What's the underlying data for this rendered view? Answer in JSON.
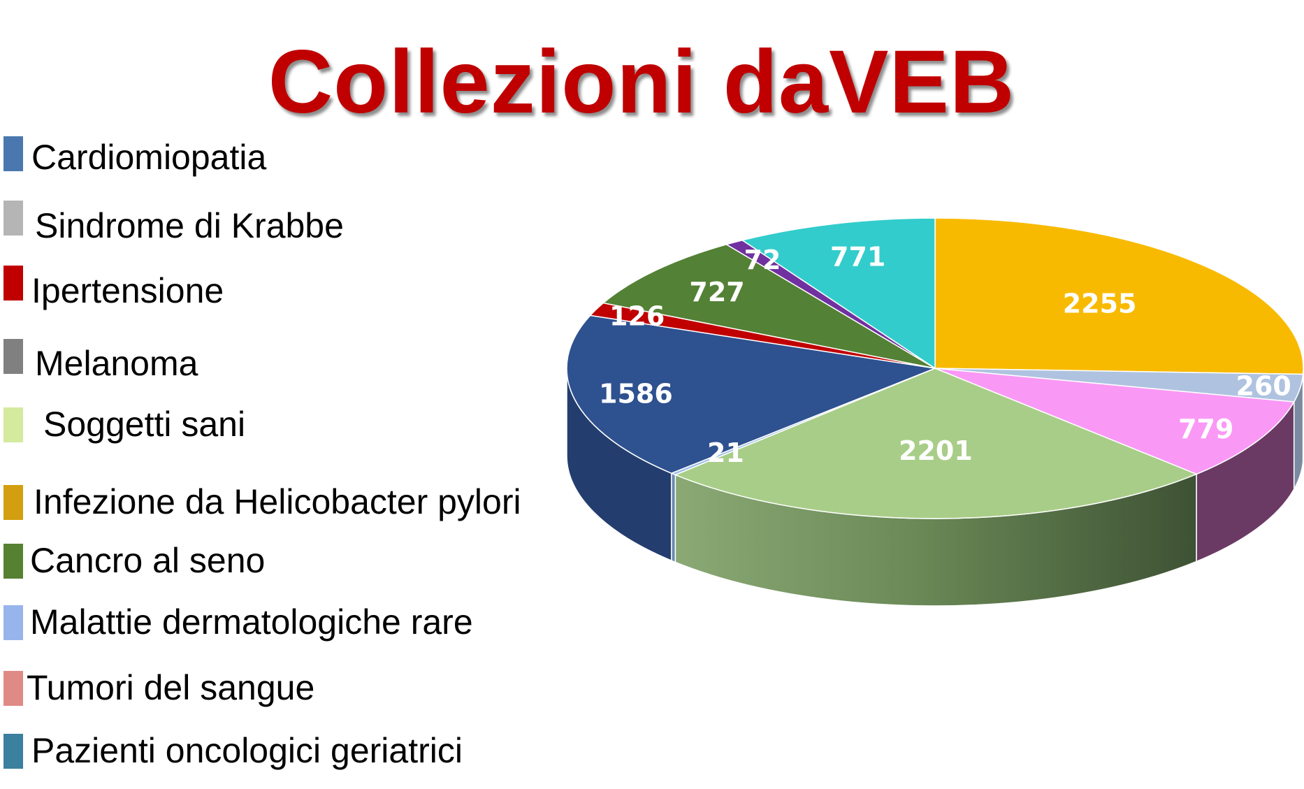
{
  "title": "Collezioni daVEB",
  "title_color": "#c00000",
  "legend": [
    {
      "label": "Cardiomiopatia",
      "color": "#4a78ae"
    },
    {
      "label": "Sindrome di Krabbe",
      "color": "#b5b5b5"
    },
    {
      "label": "Ipertensione",
      "color": "#c00000"
    },
    {
      "label": "Melanoma",
      "color": "#808080"
    },
    {
      "label": "Soggetti sani",
      "color": "#d4ea9e"
    },
    {
      "label": "Infezione da Helicobacter pylori",
      "color": "#d39e10"
    },
    {
      "label": "Cancro al seno",
      "color": "#568132"
    },
    {
      "label": "Malattie dermatologiche rare",
      "color": "#98b4ec"
    },
    {
      "label": "Tumori del sangue",
      "color": "#e08a86"
    },
    {
      "label": "Pazienti oncologici geriatrici",
      "color": "#3b809e"
    }
  ],
  "chart_data": {
    "type": "pie",
    "title": "Collezioni daVEB",
    "style": "3d",
    "values": [
      2255,
      260,
      779,
      2201,
      21,
      1586,
      126,
      727,
      72,
      771
    ],
    "labels": [
      "2255",
      "260",
      "779",
      "2201",
      "21",
      "1586",
      "126",
      "727",
      "72",
      "771"
    ],
    "colors": [
      "#f8ba00",
      "#afc3e0",
      "#fa98f6",
      "#a8cd88",
      "#9dbfe6",
      "#2e5190",
      "#c00000",
      "#538135",
      "#7030a0",
      "#33cccc"
    ],
    "side_colors": [
      "#a07800",
      "#7a8aa0",
      "#6a3a64",
      "#5a7a3a",
      "#6a8ab0",
      "#233d6e",
      "#7a0000",
      "#35561f",
      "#4a2070",
      "#228a8a"
    ]
  }
}
